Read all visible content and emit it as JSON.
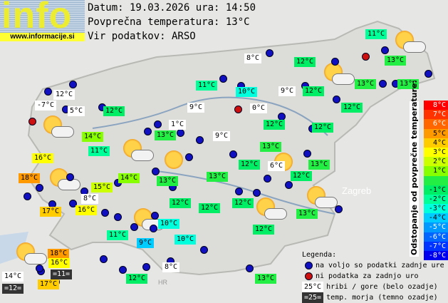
{
  "header": {
    "logo": "info",
    "url": "www.informacije.si",
    "date_line": "Datum: 19.03.2026 ura: 14:50",
    "avg_line": "Povprečna temperatura: 13°C",
    "source_line": "Vir podatkov: ARSO"
  },
  "map_labels": {
    "city": "Zagreb",
    "country": "HR"
  },
  "colors": {
    "station": "#1010c0",
    "no_data": "#cc1010",
    "mountain_bg": "#ffffff",
    "sea_bg": "#333333"
  },
  "stations": [
    {
      "t": "11°C",
      "k": "-2"
    },
    {
      "t": "8°C",
      "k": "m"
    },
    {
      "t": "12°C",
      "k": "-1"
    },
    {
      "t": "13°C",
      "k": "0"
    },
    {
      "t": "11°C",
      "k": "-2"
    },
    {
      "t": "10°C",
      "k": "-3"
    },
    {
      "t": "9°C",
      "k": "m"
    },
    {
      "t": "12°C",
      "k": "-1"
    },
    {
      "t": "13°C",
      "k": "0"
    },
    {
      "t": "13°C",
      "k": "0"
    },
    {
      "t": "12°C",
      "k": "m"
    },
    {
      "t": "-7°C",
      "k": "m"
    },
    {
      "t": "5°C",
      "k": "m"
    },
    {
      "t": "12°C",
      "k": "-1"
    },
    {
      "t": "9°C",
      "k": "m"
    },
    {
      "t": "0°C",
      "k": "m"
    },
    {
      "t": "12°C",
      "k": "-1"
    },
    {
      "t": "12°C",
      "k": "-1"
    },
    {
      "t": "12°C",
      "k": "-1"
    },
    {
      "t": "1°C",
      "k": "m"
    },
    {
      "t": "14°C",
      "k": "1"
    },
    {
      "t": "9°C",
      "k": "m"
    },
    {
      "t": "13°C",
      "k": "0"
    },
    {
      "t": "13°C",
      "k": "0"
    },
    {
      "t": "11°C",
      "k": "-2"
    },
    {
      "t": "16°C",
      "k": "3"
    },
    {
      "t": "12°C",
      "k": "-1"
    },
    {
      "t": "6°C",
      "k": "m"
    },
    {
      "t": "13°C",
      "k": "0"
    },
    {
      "t": "14°C",
      "k": "1"
    },
    {
      "t": "13°C",
      "k": "0"
    },
    {
      "t": "13°C",
      "k": "0"
    },
    {
      "t": "12°C",
      "k": "-1"
    },
    {
      "t": "18°C",
      "k": "5"
    },
    {
      "t": "15°C",
      "k": "2"
    },
    {
      "t": "8°C",
      "k": "m"
    },
    {
      "t": "12°C",
      "k": "-1"
    },
    {
      "t": "12°C",
      "k": "-1"
    },
    {
      "t": "12°C",
      "k": "-1"
    },
    {
      "t": "17°C",
      "k": "4"
    },
    {
      "t": "16°C",
      "k": "3"
    },
    {
      "t": "13°C",
      "k": "0"
    },
    {
      "t": "10°C",
      "k": "-3"
    },
    {
      "t": "11°C",
      "k": "-2"
    },
    {
      "t": "12°C",
      "k": "-1"
    },
    {
      "t": "9°C",
      "k": "-4"
    },
    {
      "t": "10°C",
      "k": "-3"
    },
    {
      "t": "18°C",
      "k": "5"
    },
    {
      "t": "16°C",
      "k": "3"
    },
    {
      "t": "8°C",
      "k": "m"
    },
    {
      "t": "=11=",
      "k": "s"
    },
    {
      "t": "14°C",
      "k": "m"
    },
    {
      "t": "17°C",
      "k": "4"
    },
    {
      "t": "12°C",
      "k": "-1"
    },
    {
      "t": "13°C",
      "k": "0"
    },
    {
      "t": "=12=",
      "k": "s"
    }
  ],
  "scale": {
    "title": "Odstopanje od povprečne temperature:",
    "steps": [
      {
        "l": "8°C",
        "c": "#ff0000",
        "f": "#ffffff"
      },
      {
        "l": "7°C",
        "c": "#ff3300",
        "f": "#ffffff"
      },
      {
        "l": "6°C",
        "c": "#ff6600",
        "f": "#ffffff"
      },
      {
        "l": "5°C",
        "c": "#ff9900",
        "f": "#000"
      },
      {
        "l": "4°C",
        "c": "#ffcc00",
        "f": "#000"
      },
      {
        "l": "3°C",
        "c": "#ffff00",
        "f": "#000"
      },
      {
        "l": "2°C",
        "c": "#ccff00",
        "f": "#000"
      },
      {
        "l": "1°C",
        "c": "#88ff00",
        "f": "#000"
      },
      {
        "l": "",
        "c": "#22ee44",
        "f": "#000"
      },
      {
        "l": "-1°C",
        "c": "#00ee66",
        "f": "#000"
      },
      {
        "l": "-2°C",
        "c": "#00ff99",
        "f": "#000"
      },
      {
        "l": "-3°C",
        "c": "#00ffdd",
        "f": "#000"
      },
      {
        "l": "-4°C",
        "c": "#00ccff",
        "f": "#000"
      },
      {
        "l": "-5°C",
        "c": "#0099ff",
        "f": "#fff"
      },
      {
        "l": "-6°C",
        "c": "#0066ff",
        "f": "#fff"
      },
      {
        "l": "-7°C",
        "c": "#0033ff",
        "f": "#fff"
      },
      {
        "l": "-8°C",
        "c": "#0000ee",
        "f": "#fff"
      }
    ]
  },
  "legend": {
    "title": "Legenda:",
    "available": "na voljo so podatki zadnje ure",
    "no_data": "ni podatka za zadnjo uro",
    "mountain_sample": "25°C",
    "mountain": "hribi / gore (belo ozadje)",
    "sea_sample": "=25=",
    "sea": "temp. morja (temno ozadje)"
  }
}
